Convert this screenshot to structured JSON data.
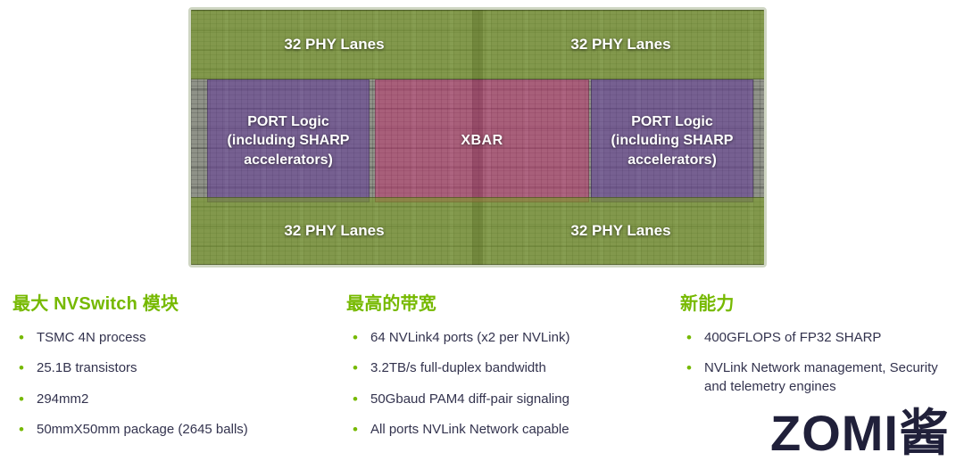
{
  "chip": {
    "phy_labels": {
      "top_left": "32 PHY Lanes",
      "top_right": "32 PHY Lanes",
      "bottom_left": "32 PHY Lanes",
      "bottom_right": "32 PHY Lanes"
    },
    "port_logic_left": "PORT Logic (including SHARP accelerators)",
    "xbar": "XBAR",
    "port_logic_right": "PORT Logic (including SHARP accelerators)"
  },
  "sections": [
    {
      "title": "最大 NVSwitch 模块",
      "bullets": [
        "TSMC 4N process",
        "25.1B transistors",
        "294mm2",
        "50mmX50mm package (2645 balls)"
      ]
    },
    {
      "title": "最高的带宽",
      "bullets": [
        "64 NVLink4 ports (x2 per NVLink)",
        "3.2TB/s full-duplex bandwidth",
        "50Gbaud PAM4 diff-pair signaling",
        "All ports NVLink Network capable"
      ]
    },
    {
      "title": "新能力",
      "bullets": [
        "400GFLOPS of FP32 SHARP",
        "NVLink Network management, Security and telemetry engines"
      ]
    }
  ],
  "watermark": "ZOMI酱",
  "colors": {
    "accent_green": "#76b900",
    "phy_overlay_green": "#7a9c24",
    "port_logic_purple": "#684296",
    "xbar_pink": "#be3470",
    "text_dark": "#33334e",
    "watermark_color": "#20203a"
  }
}
